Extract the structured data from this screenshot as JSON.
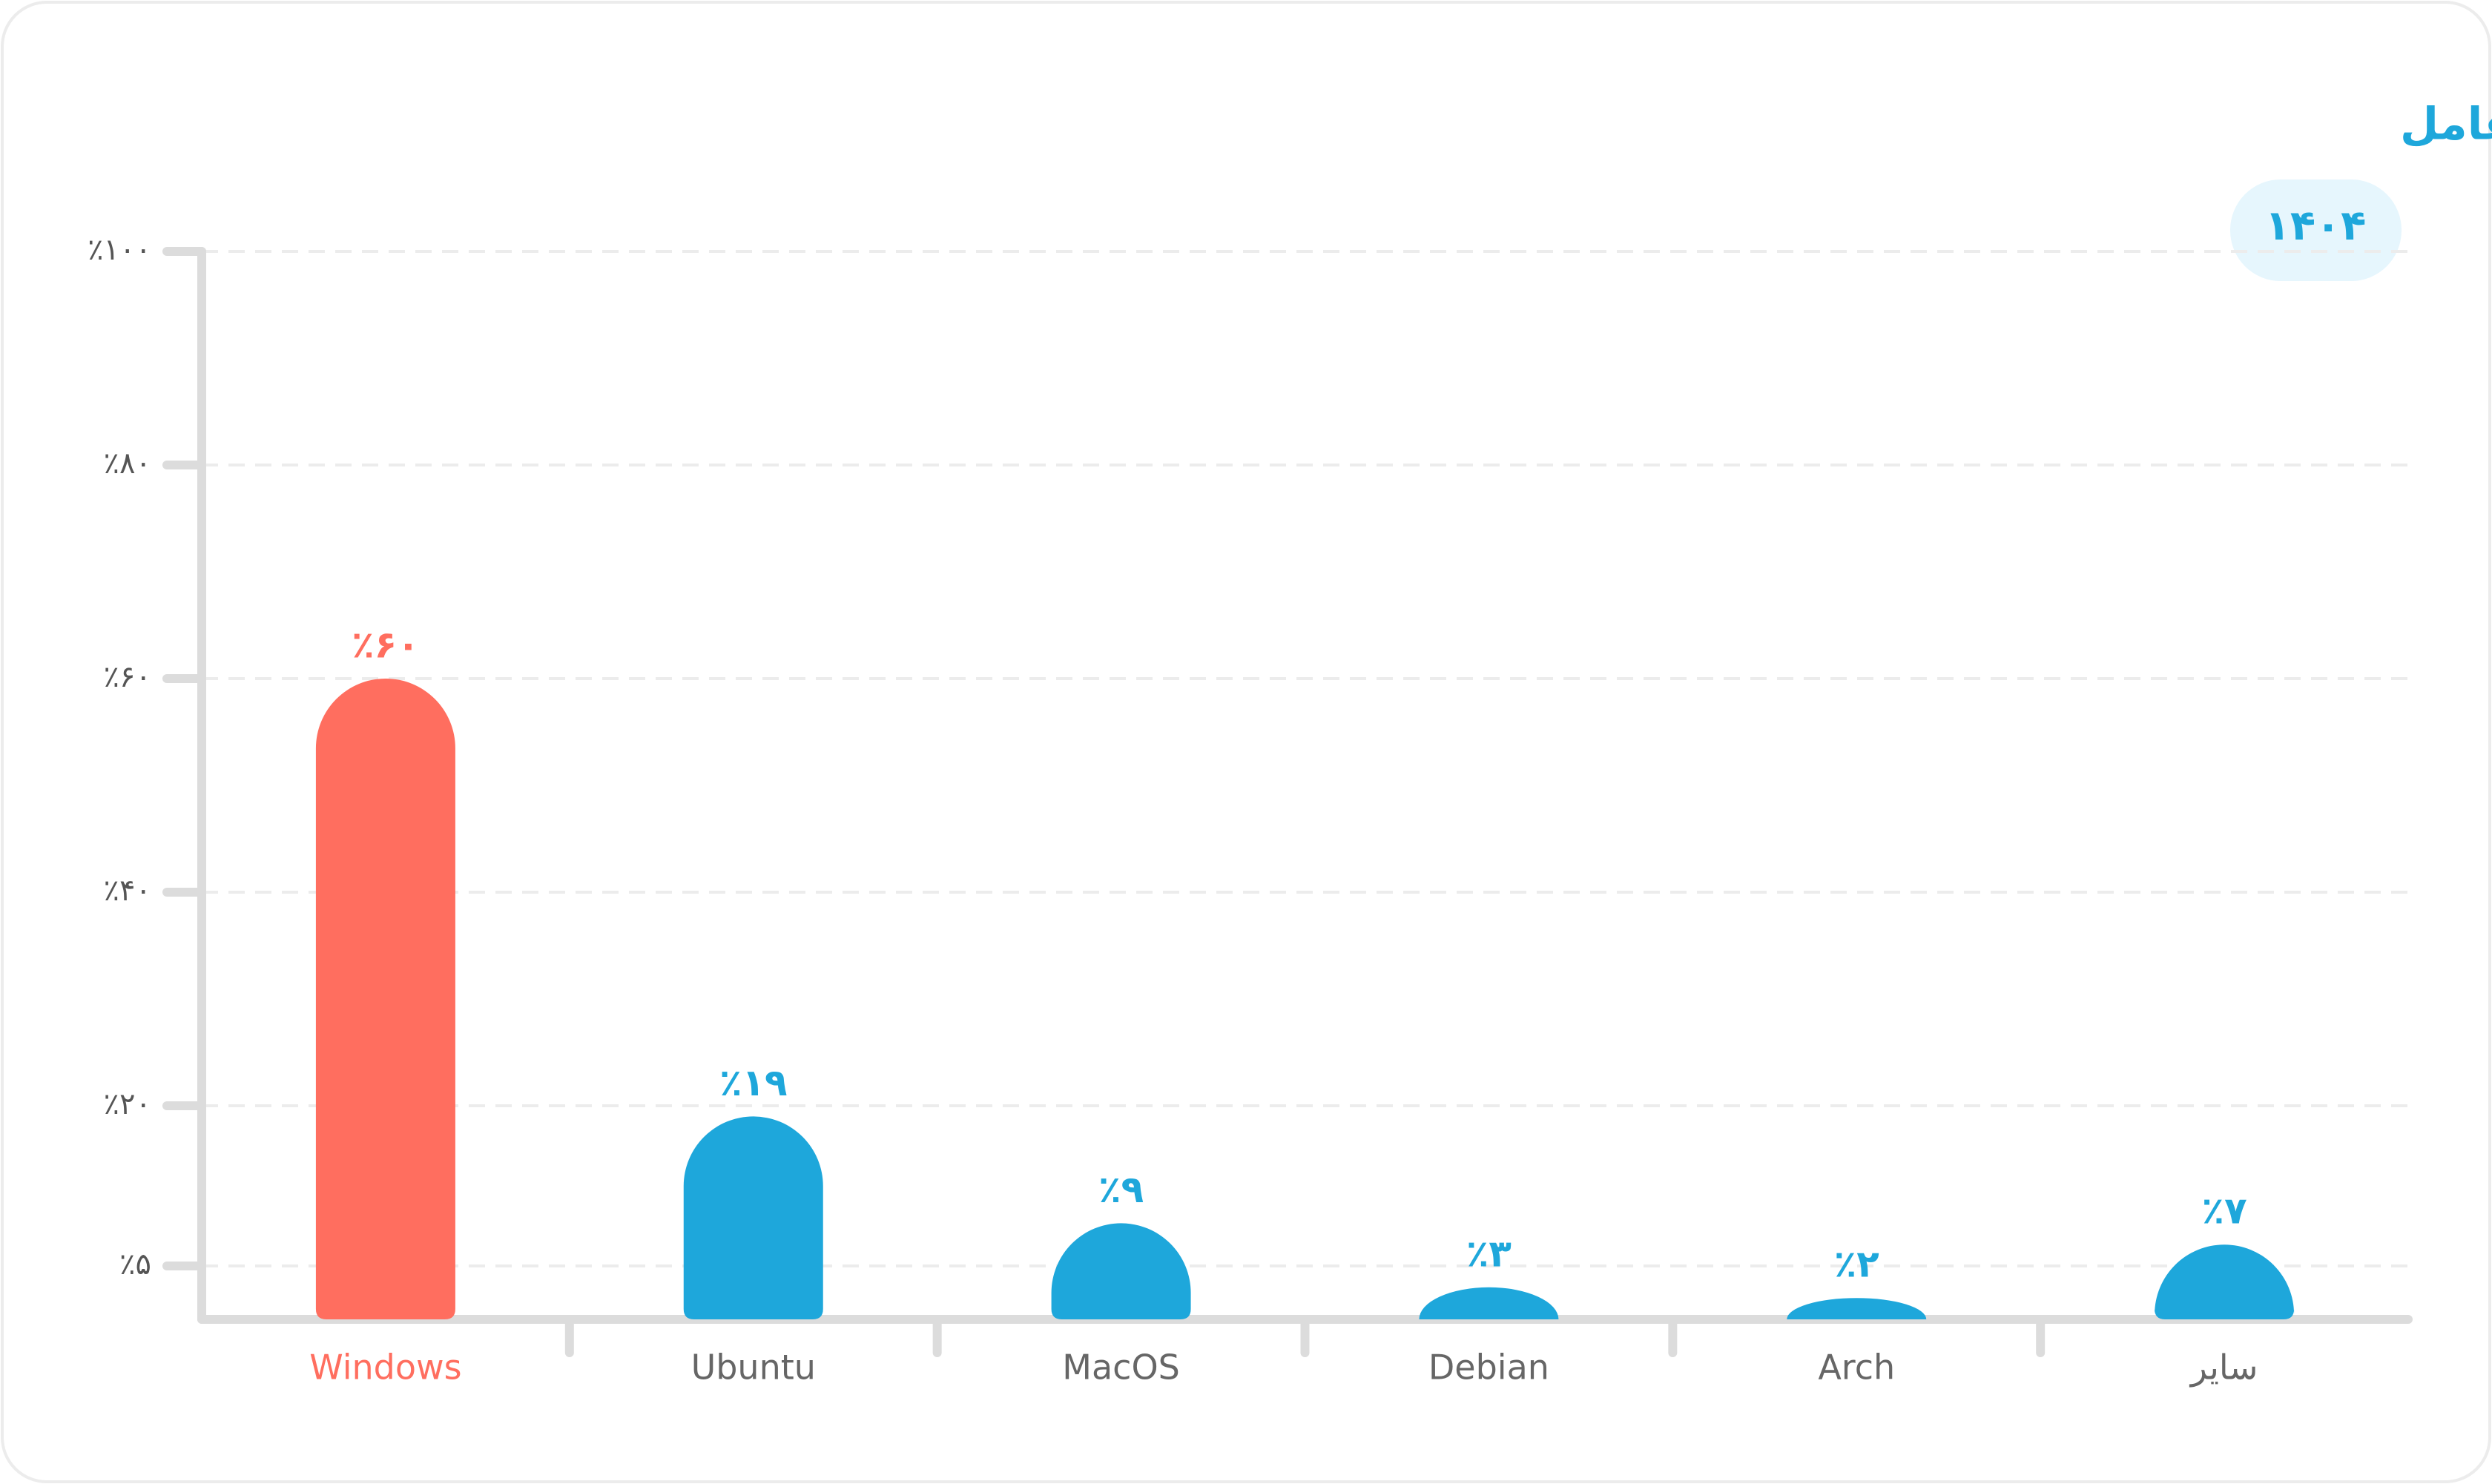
{
  "chart_data": {
    "type": "bar",
    "title": "تغییرات استفاده از سیستم‌عامل",
    "badge": "۱۴۰۴",
    "categories": [
      "Windows",
      "Ubuntu",
      "MacOS",
      "Debian",
      "Arch",
      "سایر"
    ],
    "values": [
      60,
      19,
      9,
      3,
      2,
      7
    ],
    "value_labels": [
      "٪۶۰",
      "٪۱۹",
      "٪۹",
      "٪۳",
      "٪۲",
      "٪۷"
    ],
    "colors": [
      "#ff6e5f",
      "#1ea7db",
      "#1ea7db",
      "#1ea7db",
      "#1ea7db",
      "#1ea7db"
    ],
    "ylim": [
      0,
      100
    ],
    "yticks": [
      {
        "value": 100,
        "label": "٪۱۰۰"
      },
      {
        "value": 80,
        "label": "٪۸۰"
      },
      {
        "value": 60,
        "label": "٪۶۰"
      },
      {
        "value": 40,
        "label": "٪۴۰"
      },
      {
        "value": 20,
        "label": "٪۲۰"
      },
      {
        "value": 5,
        "label": "٪۵"
      }
    ],
    "grid": true
  }
}
